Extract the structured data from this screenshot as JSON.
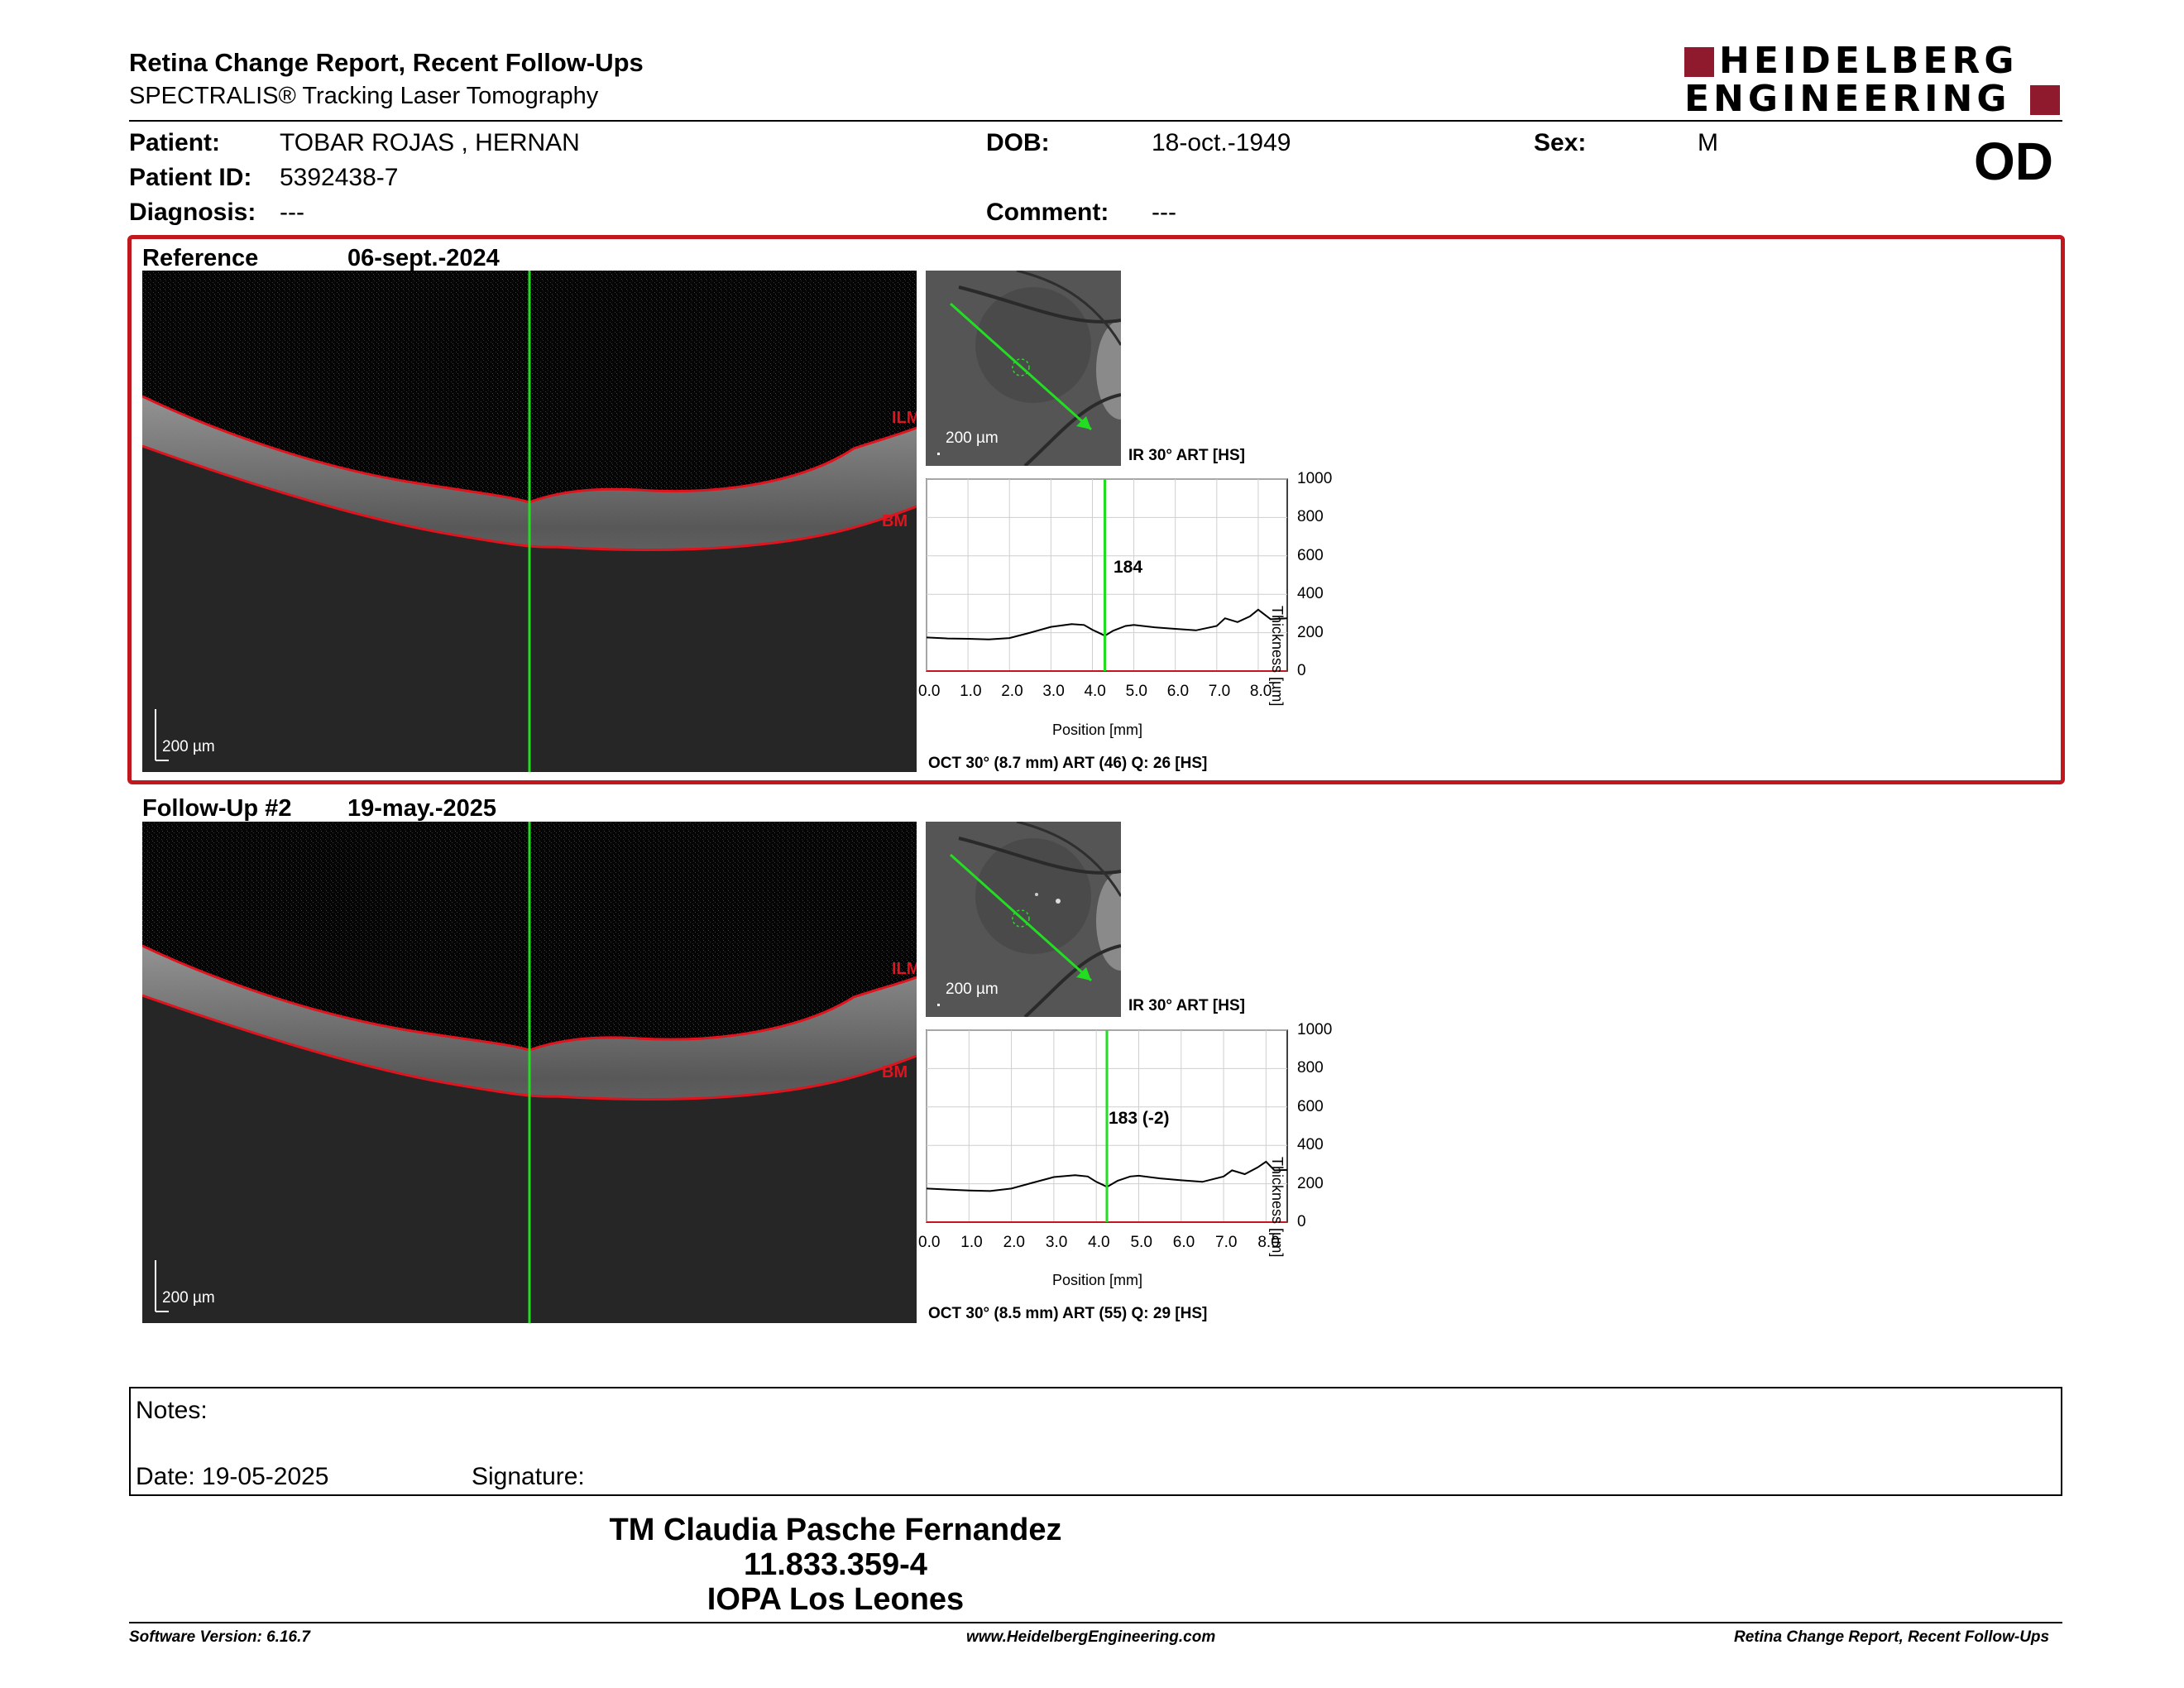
{
  "report": {
    "title": "Retina Change Report, Recent Follow-Ups",
    "subtitle": "SPECTRALIS® Tracking Laser Tomography"
  },
  "logo": {
    "line1": "HEIDELBERG",
    "line2": "ENGINEERING",
    "color": "#8f1a2e"
  },
  "eye": "OD",
  "patient": {
    "patient_label": "Patient:",
    "patient_name": "TOBAR ROJAS , HERNAN",
    "id_label": "Patient ID:",
    "id_value": "5392438-7",
    "diagnosis_label": "Diagnosis:",
    "diagnosis_value": "---",
    "dob_label": "DOB:",
    "dob_value": "18-oct.-1949",
    "comment_label": "Comment:",
    "comment_value": "---",
    "sex_label": "Sex:",
    "sex_value": "M"
  },
  "exams": [
    {
      "label": "Reference",
      "date": "06-sept.-2024",
      "oct_scale": "200 µm",
      "ilm": "ILM",
      "bm": "BM",
      "fundus_scale": "200 µm",
      "fundus_caption": "IR 30° ART [HS]",
      "marker_value": "184",
      "x_axis_label": "Position [mm]",
      "y_axis_label": "Thickness [µm]",
      "scan_caption": "OCT 30° (8.7 mm) ART (46) Q: 26 [HS]"
    },
    {
      "label": "Follow-Up #2",
      "date": "19-may.-2025",
      "oct_scale": "200 µm",
      "ilm": "ILM",
      "bm": "BM",
      "fundus_scale": "200 µm",
      "fundus_caption": "IR 30° ART [HS]",
      "marker_value": "183 (-2)",
      "x_axis_label": "Position [mm]",
      "y_axis_label": "Thickness [µm]",
      "scan_caption": "OCT 30° (8.5 mm) ART (55) Q: 29 [HS]"
    }
  ],
  "chart_data": [
    {
      "type": "line",
      "xlabel": "Position [mm]",
      "ylabel": "Thickness [µm]",
      "x_ticks": [
        "0.0",
        "1.0",
        "2.0",
        "3.0",
        "4.0",
        "5.0",
        "6.0",
        "7.0",
        "8.0"
      ],
      "y_ticks": [
        "0",
        "200",
        "400",
        "600",
        "800",
        "1000"
      ],
      "xlim": [
        0,
        8.7
      ],
      "ylim": [
        0,
        1000
      ],
      "marker_x": 4.3,
      "marker_label": "184",
      "series": [
        {
          "x": [
            0.0,
            0.5,
            1.0,
            1.5,
            2.0,
            2.5,
            3.0,
            3.5,
            3.8,
            4.0,
            4.2,
            4.3,
            4.5,
            4.8,
            5.0,
            5.5,
            6.0,
            6.5,
            7.0,
            7.2,
            7.5,
            7.8,
            8.0,
            8.3,
            8.7
          ],
          "y": [
            175,
            170,
            168,
            165,
            172,
            200,
            230,
            245,
            240,
            215,
            195,
            184,
            210,
            235,
            240,
            228,
            220,
            212,
            235,
            275,
            255,
            285,
            320,
            270,
            275
          ]
        }
      ],
      "grid": true
    },
    {
      "type": "line",
      "xlabel": "Position [mm]",
      "ylabel": "Thickness [µm]",
      "x_ticks": [
        "0.0",
        "1.0",
        "2.0",
        "3.0",
        "4.0",
        "5.0",
        "6.0",
        "7.0",
        "8.0"
      ],
      "y_ticks": [
        "0",
        "200",
        "400",
        "600",
        "800",
        "1000"
      ],
      "xlim": [
        0,
        8.5
      ],
      "ylim": [
        0,
        1000
      ],
      "marker_x": 4.25,
      "marker_label": "183 (-2)",
      "series": [
        {
          "x": [
            0.0,
            0.5,
            1.0,
            1.5,
            2.0,
            2.5,
            3.0,
            3.5,
            3.8,
            4.0,
            4.15,
            4.25,
            4.5,
            4.8,
            5.0,
            5.5,
            6.0,
            6.5,
            7.0,
            7.2,
            7.5,
            7.8,
            8.0,
            8.2,
            8.5
          ],
          "y": [
            175,
            170,
            165,
            162,
            175,
            205,
            235,
            245,
            238,
            210,
            195,
            183,
            215,
            238,
            242,
            228,
            218,
            210,
            238,
            270,
            250,
            285,
            315,
            270,
            272
          ]
        }
      ],
      "grid": true
    }
  ],
  "notes": {
    "notes_label": "Notes:",
    "date_label": "Date: 19-05-2025",
    "signature_label": "Signature:"
  },
  "signatory": {
    "name": "TM Claudia Pasche Fernandez",
    "id": "11.833.359-4",
    "place": "IOPA Los Leones"
  },
  "footer": {
    "software": "Software Version: 6.16.7",
    "website": "www.HeidelbergEngineering.com",
    "report_name": "Retina Change Report, Recent Follow-Ups"
  },
  "colors": {
    "frame_red": "#c0181e",
    "scan_line": "#22dd22",
    "layer_red": "#e0141e"
  }
}
